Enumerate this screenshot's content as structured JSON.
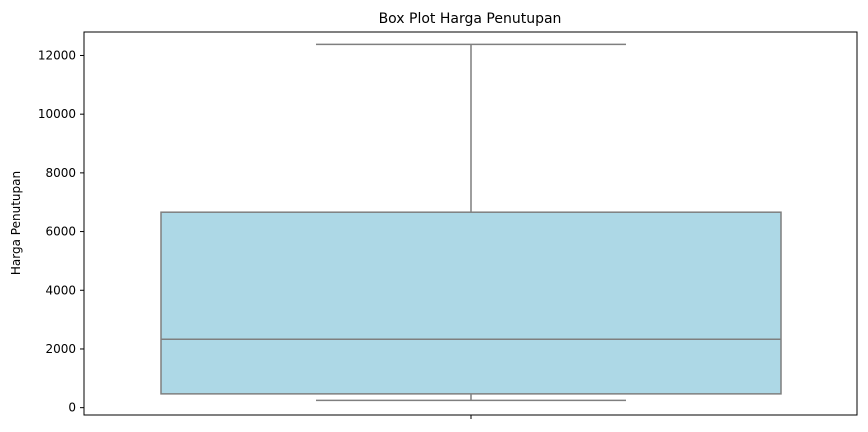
{
  "chart_data": {
    "type": "box",
    "title": "Box Plot Harga Penutupan",
    "xlabel": "",
    "ylabel": "Harga Penutupan",
    "ylim": [
      -250,
      12800
    ],
    "yticks": [
      0,
      2000,
      4000,
      6000,
      8000,
      10000,
      12000
    ],
    "grid": false,
    "box": {
      "whisker_low": 250,
      "q1": 470,
      "median": 2330,
      "q3": 6660,
      "whisker_high": 12380
    },
    "colors": {
      "box_fill": "#add8e6",
      "box_edge": "#7f7f7f",
      "axis": "#000000"
    }
  }
}
